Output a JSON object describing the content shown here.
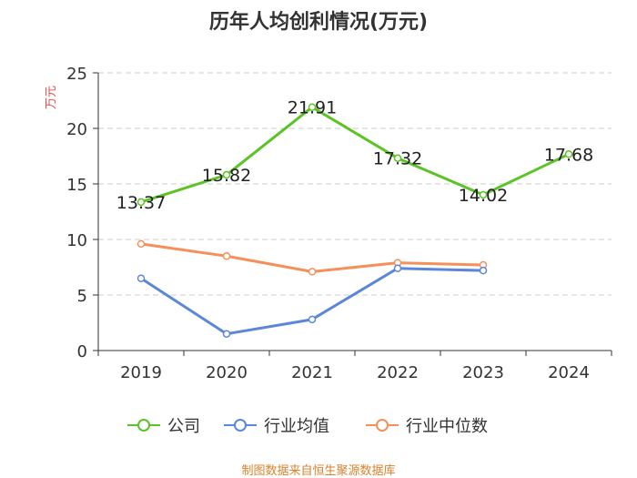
{
  "chart_data": {
    "type": "line",
    "title": "历年人均创利情况(万元)",
    "ylabel": "万元",
    "xlabel": "",
    "categories": [
      "2019",
      "2020",
      "2021",
      "2022",
      "2023",
      "2024"
    ],
    "ylim": [
      0,
      25
    ],
    "yticks": [
      0,
      5,
      10,
      15,
      20,
      25
    ],
    "grid": true,
    "legend_position": "bottom",
    "series": [
      {
        "name": "公司",
        "color": "#5bc424",
        "values": [
          13.37,
          15.82,
          21.91,
          17.32,
          14.02,
          17.68
        ],
        "labels": [
          "13.37",
          "15.82",
          "21.91",
          "17.32",
          "14.02",
          "17.68"
        ]
      },
      {
        "name": "行业均值",
        "color": "#5b87da",
        "values": [
          6.5,
          1.5,
          2.8,
          7.4,
          7.2,
          null
        ]
      },
      {
        "name": "行业中位数",
        "color": "#f5905a",
        "values": [
          9.6,
          8.5,
          7.1,
          7.9,
          7.7,
          null
        ]
      }
    ]
  },
  "footer": "制图数据来自恒生聚源数据库"
}
